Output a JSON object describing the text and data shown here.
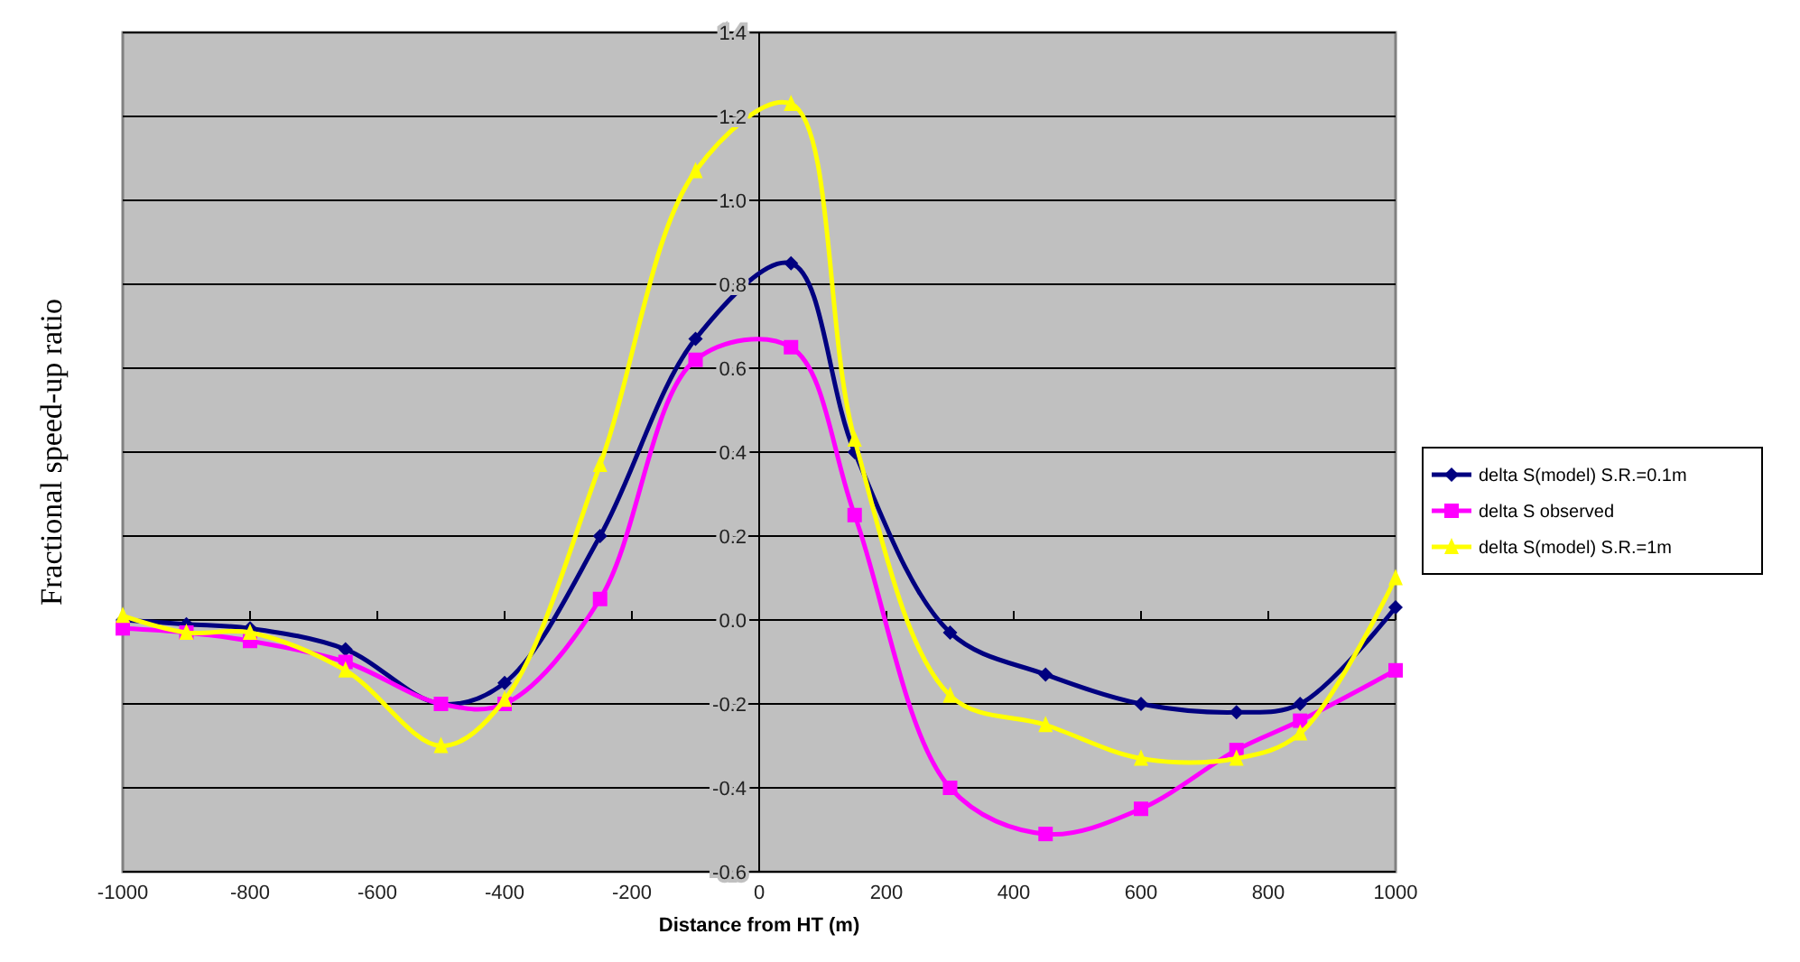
{
  "chart_data": {
    "type": "line",
    "xlabel": "Distance from HT (m)",
    "ylabel": "Fractional speed-up ratio",
    "x": [
      -1000,
      -900,
      -800,
      -650,
      -500,
      -400,
      -250,
      -100,
      50,
      150,
      300,
      450,
      600,
      750,
      850,
      1000
    ],
    "xlim": [
      -1000,
      1000
    ],
    "xticks": [
      -1000,
      -800,
      -600,
      -400,
      -200,
      0,
      200,
      400,
      600,
      800,
      1000
    ],
    "ylim": [
      -0.6,
      1.4
    ],
    "yticks": [
      -0.6,
      -0.4,
      -0.2,
      {
        "value": 0,
        "label": "0.0"
      },
      0.2,
      0.4,
      0.6,
      0.8,
      {
        "value": 1,
        "label": "1.0"
      },
      1.2,
      1.4
    ],
    "grid": "y",
    "legend": "right",
    "line_style": "solid",
    "series": [
      {
        "name": "delta S(model) S.R.=0.1m",
        "color": "#000080",
        "marker": "diamond",
        "values": [
          0.0,
          -0.01,
          -0.02,
          -0.07,
          -0.2,
          -0.15,
          0.2,
          0.67,
          0.85,
          0.4,
          -0.03,
          -0.13,
          -0.2,
          -0.22,
          -0.2,
          0.03
        ]
      },
      {
        "name": "delta S observed",
        "color": "#ff00ff",
        "marker": "square",
        "values": [
          -0.02,
          -0.03,
          -0.05,
          -0.1,
          -0.2,
          -0.2,
          0.05,
          0.62,
          0.65,
          0.25,
          -0.4,
          -0.51,
          -0.45,
          -0.31,
          -0.24,
          -0.12
        ]
      },
      {
        "name": "delta S(model) S.R.=1m",
        "color": "#ffff00",
        "marker": "triangle",
        "values": [
          0.01,
          -0.03,
          -0.03,
          -0.12,
          -0.3,
          -0.19,
          0.37,
          1.07,
          1.23,
          0.43,
          -0.18,
          -0.25,
          -0.33,
          -0.33,
          -0.27,
          0.1
        ]
      }
    ]
  }
}
